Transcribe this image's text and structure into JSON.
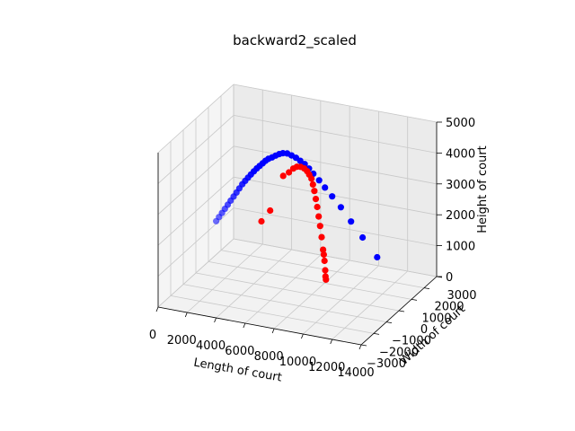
{
  "chart_data": {
    "type": "scatter",
    "projection": "3d",
    "title": "backward2_scaled",
    "xlabel": "Length of court",
    "ylabel": "Width of court",
    "zlabel": "Height of court",
    "xlim": [
      0,
      14000
    ],
    "ylim": [
      -3000,
      3000
    ],
    "zlim": [
      0,
      5000
    ],
    "x_ticks": [
      0,
      2000,
      4000,
      6000,
      8000,
      10000,
      12000,
      14000
    ],
    "y_ticks": [
      -3000,
      -2000,
      -1000,
      0,
      1000,
      2000,
      3000
    ],
    "z_ticks": [
      0,
      1000,
      2000,
      3000,
      4000,
      5000
    ],
    "x_tick_labels": [
      "0",
      "2000",
      "4000",
      "6000",
      "8000",
      "10000",
      "12000",
      "14000"
    ],
    "y_tick_labels": [
      "−3000",
      "−2000",
      "−1000",
      "0",
      "1000",
      "2000",
      "3000"
    ],
    "z_tick_labels": [
      "0",
      "1000",
      "2000",
      "3000",
      "4000",
      "5000"
    ],
    "grid": true,
    "series": [
      {
        "color": "#0000ff",
        "points": [
          [
            1400,
            0,
            1800
          ],
          [
            1600,
            0,
            1950
          ],
          [
            1800,
            0,
            2100
          ],
          [
            2000,
            0,
            2250
          ],
          [
            2200,
            0,
            2400
          ],
          [
            2400,
            0,
            2550
          ],
          [
            2600,
            0,
            2700
          ],
          [
            2800,
            0,
            2850
          ],
          [
            3000,
            0,
            3000
          ],
          [
            3200,
            0,
            3150
          ],
          [
            3400,
            0,
            3280
          ],
          [
            3600,
            0,
            3400
          ],
          [
            3800,
            0,
            3520
          ],
          [
            4000,
            0,
            3640
          ],
          [
            4200,
            0,
            3750
          ],
          [
            4400,
            0,
            3850
          ],
          [
            4600,
            0,
            3950
          ],
          [
            4800,
            0,
            4050
          ],
          [
            5000,
            0,
            4130
          ],
          [
            5250,
            0,
            4200
          ],
          [
            5500,
            0,
            4280
          ],
          [
            5750,
            0,
            4350
          ],
          [
            6000,
            0,
            4400
          ],
          [
            6300,
            0,
            4420
          ],
          [
            6600,
            0,
            4380
          ],
          [
            6900,
            0,
            4330
          ],
          [
            7200,
            0,
            4260
          ],
          [
            7500,
            0,
            4180
          ],
          [
            7800,
            0,
            4060
          ],
          [
            8100,
            0,
            3920
          ],
          [
            8500,
            0,
            3740
          ],
          [
            8900,
            0,
            3540
          ],
          [
            9400,
            0,
            3300
          ],
          [
            10000,
            0,
            3000
          ],
          [
            10700,
            0,
            2600
          ],
          [
            11500,
            0,
            2150
          ],
          [
            12500,
            0,
            1600
          ]
        ]
      },
      {
        "color": "#ff0000",
        "points": [
          [
            4000,
            600,
            1800
          ],
          [
            4600,
            600,
            2200
          ],
          [
            5500,
            600,
            3400
          ],
          [
            5900,
            600,
            3550
          ],
          [
            6200,
            600,
            3700
          ],
          [
            6450,
            600,
            3780
          ],
          [
            6700,
            600,
            3800
          ],
          [
            6950,
            600,
            3770
          ],
          [
            7150,
            600,
            3700
          ],
          [
            7300,
            600,
            3600
          ],
          [
            7450,
            600,
            3480
          ],
          [
            7550,
            600,
            3300
          ],
          [
            7650,
            600,
            3100
          ],
          [
            7750,
            600,
            2850
          ],
          [
            7850,
            600,
            2600
          ],
          [
            7950,
            600,
            2300
          ],
          [
            8050,
            600,
            2000
          ],
          [
            8150,
            600,
            1650
          ],
          [
            8250,
            600,
            1250
          ],
          [
            8300,
            600,
            1100
          ],
          [
            8350,
            600,
            900
          ],
          [
            8400,
            600,
            600
          ],
          [
            8420,
            600,
            400
          ],
          [
            8450,
            600,
            300
          ]
        ]
      }
    ]
  }
}
